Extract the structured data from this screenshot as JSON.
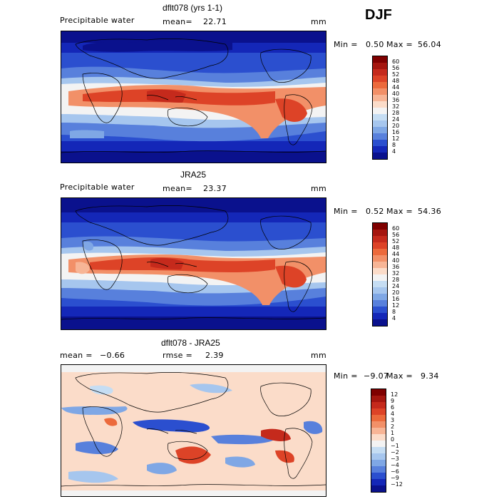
{
  "season": "DJF",
  "panels": [
    {
      "title": "dflt078 (yrs 1-1)",
      "variable": "Precipitable water",
      "stat_label": "mean=",
      "stat_value": "22.71",
      "units": "mm",
      "min_label": "Min =",
      "min_value": "0.50",
      "max_label": "Max =",
      "max_value": "56.04",
      "colorbar_ticks": [
        "60",
        "56",
        "52",
        "48",
        "44",
        "40",
        "36",
        "32",
        "28",
        "24",
        "20",
        "16",
        "12",
        "8",
        "4"
      ],
      "colorbar_colors": [
        "#7f0000",
        "#a5160f",
        "#c52a1c",
        "#dd4327",
        "#ec6a3c",
        "#f29068",
        "#f7b596",
        "#fbdcc9",
        "#f3f3f3",
        "#c5ddf3",
        "#a6c6ee",
        "#7fa7e5",
        "#5880dc",
        "#2b4fcf",
        "#1427b8",
        "#0a118d"
      ]
    },
    {
      "title": "JRA25",
      "variable": "Precipitable water",
      "stat_label": "mean=",
      "stat_value": "23.37",
      "units": "mm",
      "min_label": "Min =",
      "min_value": "0.52",
      "max_label": "Max =",
      "max_value": "54.36",
      "colorbar_ticks": [
        "60",
        "56",
        "52",
        "48",
        "44",
        "40",
        "36",
        "32",
        "28",
        "24",
        "20",
        "16",
        "12",
        "8",
        "4"
      ],
      "colorbar_colors": [
        "#7f0000",
        "#a5160f",
        "#c52a1c",
        "#dd4327",
        "#ec6a3c",
        "#f29068",
        "#f7b596",
        "#fbdcc9",
        "#f3f3f3",
        "#c5ddf3",
        "#a6c6ee",
        "#7fa7e5",
        "#5880dc",
        "#2b4fcf",
        "#1427b8",
        "#0a118d"
      ]
    },
    {
      "title": "dflt078 - JRA25",
      "mean_label": "mean =",
      "mean_value": "−0.66",
      "rmse_label": "rmse =",
      "rmse_value": "2.39",
      "units": "mm",
      "min_label": "Min =",
      "min_value": "−9.07",
      "max_label": "Max =",
      "max_value": "9.34",
      "colorbar_ticks": [
        "12",
        "9",
        "6",
        "4",
        "3",
        "2",
        "1",
        "0",
        "−1",
        "−2",
        "−3",
        "−4",
        "−6",
        "−9",
        "−12"
      ],
      "colorbar_colors": [
        "#7f0000",
        "#a5160f",
        "#c52a1c",
        "#dd4327",
        "#ec6a3c",
        "#f29068",
        "#f7b596",
        "#fbdcc9",
        "#f3f3f3",
        "#c5ddf3",
        "#a6c6ee",
        "#7fa7e5",
        "#5880dc",
        "#2b4fcf",
        "#1427b8",
        "#0a118d"
      ]
    }
  ]
}
